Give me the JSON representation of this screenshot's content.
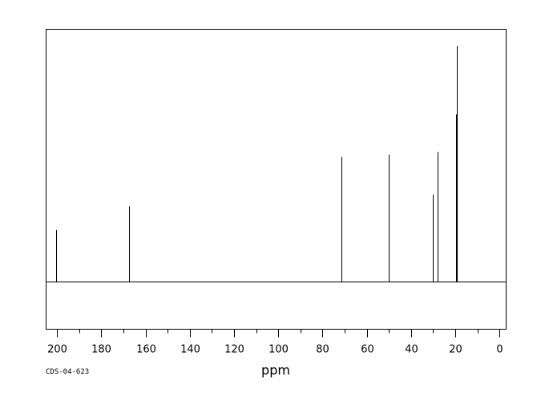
{
  "chart_data": {
    "type": "line",
    "title": "",
    "xlabel": "ppm",
    "ylabel": "",
    "xlim": [
      205,
      -3
    ],
    "ylim": [
      -0.2,
      1.07
    ],
    "x_reversed": true,
    "grid": false,
    "x_ticks_major": [
      200,
      180,
      160,
      140,
      120,
      100,
      80,
      60,
      40,
      20,
      0
    ],
    "x_ticks_minor": [
      190,
      170,
      150,
      130,
      110,
      90,
      70,
      50,
      30,
      10
    ],
    "peaks": [
      {
        "ppm": 200.3,
        "intensity": 0.22
      },
      {
        "ppm": 167.5,
        "intensity": 0.32
      },
      {
        "ppm": 71.3,
        "intensity": 0.53
      },
      {
        "ppm": 50.1,
        "intensity": 0.54
      },
      {
        "ppm": 30.3,
        "intensity": 0.37
      },
      {
        "ppm": 30.0,
        "intensity": 0.26
      },
      {
        "ppm": 28.1,
        "intensity": 0.55
      },
      {
        "ppm": 19.6,
        "intensity": 0.71
      },
      {
        "ppm": 19.2,
        "intensity": 1.0
      }
    ],
    "baseline": 0,
    "line_color": "#000000"
  },
  "footer": {
    "code": "CDS-04-623"
  }
}
